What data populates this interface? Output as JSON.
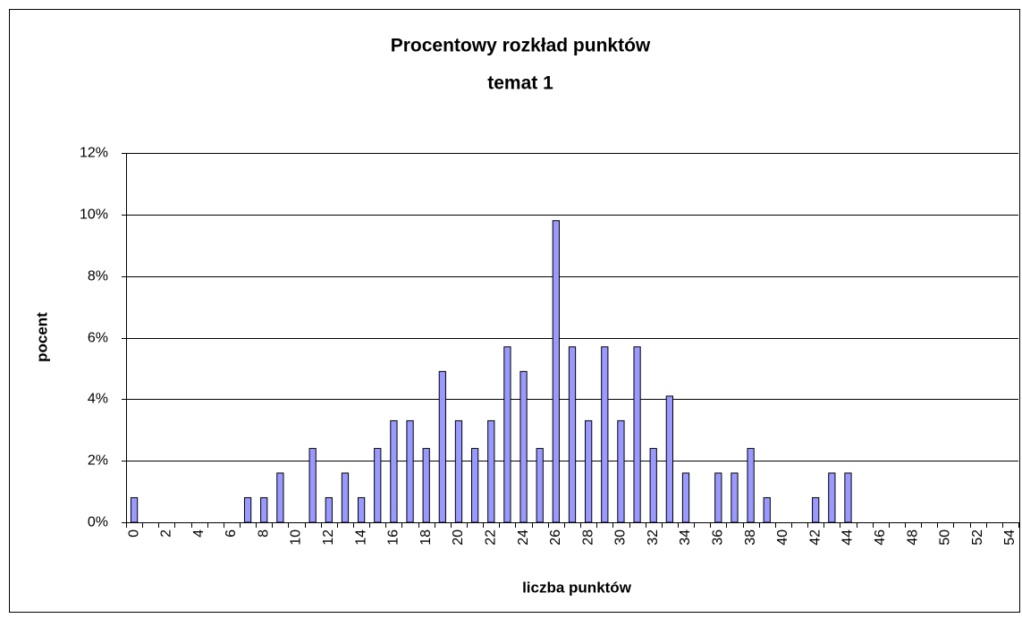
{
  "chart_data": {
    "type": "bar",
    "title": "Procentowy rozkład punktów",
    "subtitle": "temat 1",
    "x_label": "liczba punktów",
    "y_label": "pocent",
    "categories": [
      "0",
      null,
      "2",
      null,
      "4",
      null,
      "6",
      null,
      "8",
      null,
      "10",
      null,
      "12",
      null,
      "14",
      null,
      "16",
      null,
      "18",
      null,
      "20",
      null,
      "22",
      null,
      "24",
      null,
      "26",
      null,
      "28",
      null,
      "30",
      null,
      "32",
      null,
      "34",
      null,
      "36",
      null,
      "38",
      null,
      "40",
      null,
      "42",
      null,
      "44",
      null,
      "46",
      null,
      "48",
      null,
      "50",
      null,
      "52",
      null,
      "54"
    ],
    "values": [
      0.8,
      0,
      0,
      0,
      0,
      0,
      0,
      0.8,
      0.8,
      1.6,
      0,
      2.4,
      0.8,
      1.6,
      0.8,
      2.4,
      3.3,
      3.3,
      2.4,
      4.9,
      3.3,
      2.4,
      3.3,
      5.7,
      4.9,
      2.4,
      9.8,
      5.7,
      3.3,
      5.7,
      3.3,
      5.7,
      2.4,
      4.1,
      1.6,
      0,
      1.6,
      1.6,
      2.4,
      0.8,
      0,
      0,
      0.8,
      1.6,
      1.6,
      0,
      0,
      0,
      0,
      0,
      0,
      0,
      0,
      0,
      0
    ],
    "color": "#9999ff",
    "ylim": [
      0,
      12
    ],
    "yticks": [
      {
        "value": 0,
        "label": "0%"
      },
      {
        "value": 2,
        "label": "2%"
      },
      {
        "value": 4,
        "label": "4%"
      },
      {
        "value": 6,
        "label": "6%"
      },
      {
        "value": 8,
        "label": "8%"
      },
      {
        "value": 10,
        "label": "10%"
      },
      {
        "value": 12,
        "label": "12%"
      }
    ],
    "grid": true
  }
}
